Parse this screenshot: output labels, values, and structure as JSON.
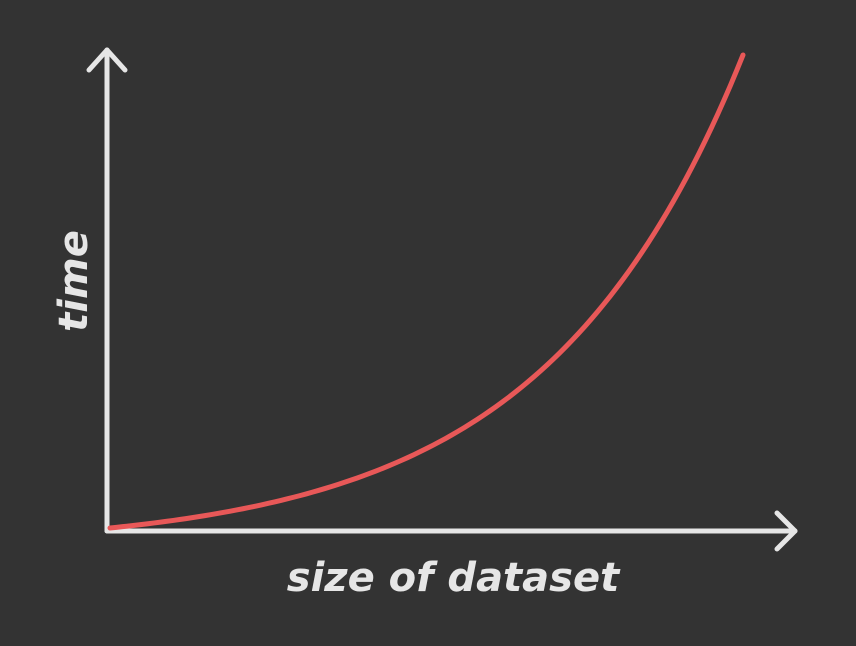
{
  "chart_data": {
    "type": "line",
    "xlabel": "size of dataset",
    "ylabel": "time",
    "series": [
      {
        "color": "#e85858",
        "shape": "exponential",
        "x": [
          0,
          0.1,
          0.2,
          0.3,
          0.4,
          0.5,
          0.6,
          0.7,
          0.8,
          0.9,
          1.0
        ],
        "y": [
          0,
          0.02,
          0.06,
          0.12,
          0.2,
          0.3,
          0.42,
          0.56,
          0.72,
          0.88,
          1.0
        ]
      }
    ],
    "grid": false,
    "ticks": false,
    "axis_color": "#e6e6e6",
    "background": "#333333"
  }
}
